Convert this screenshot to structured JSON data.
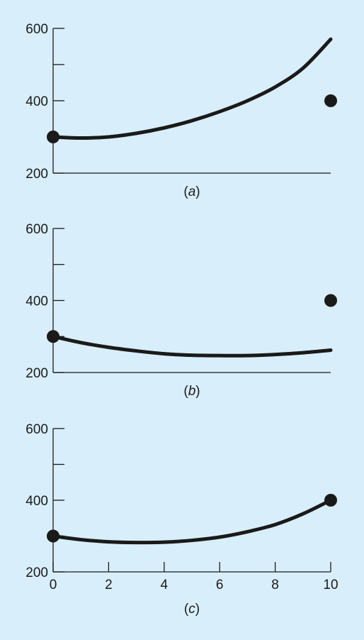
{
  "colors": {
    "background": "#d9eefb",
    "ink": "#1a1a1a"
  },
  "chart_data": [
    {
      "type": "line",
      "panel_label": "(a)",
      "panel_letter": "a",
      "xlim": [
        0,
        10
      ],
      "ylim": [
        200,
        600
      ],
      "y_ticks": [
        200,
        300,
        400,
        500,
        600
      ],
      "y_tick_labels": [
        "200",
        "",
        "400",
        "",
        "600"
      ],
      "x_ticks": [],
      "x_tick_labels": [],
      "series": [
        {
          "kind": "curve",
          "x": [
            0,
            1,
            2,
            3,
            4,
            5,
            6,
            7,
            8,
            9,
            10
          ],
          "y": [
            300,
            297,
            300,
            310,
            325,
            345,
            370,
            400,
            438,
            490,
            570
          ]
        },
        {
          "kind": "points",
          "x": [
            0,
            10
          ],
          "y": [
            300,
            400
          ]
        }
      ]
    },
    {
      "type": "line",
      "panel_label": "(b)",
      "panel_letter": "b",
      "xlim": [
        0,
        10
      ],
      "ylim": [
        200,
        600
      ],
      "y_ticks": [
        200,
        300,
        400,
        500,
        600
      ],
      "y_tick_labels": [
        "200",
        "",
        "400",
        "",
        "600"
      ],
      "x_ticks": [],
      "x_tick_labels": [],
      "series": [
        {
          "kind": "curve",
          "x": [
            0,
            1,
            2,
            3,
            4,
            5,
            6,
            7,
            8,
            9,
            10
          ],
          "y": [
            300,
            283,
            270,
            260,
            252,
            248,
            247,
            247,
            250,
            255,
            262
          ]
        },
        {
          "kind": "points",
          "x": [
            0,
            10
          ],
          "y": [
            300,
            400
          ]
        }
      ]
    },
    {
      "type": "line",
      "panel_label": "(c)",
      "panel_letter": "c",
      "xlim": [
        0,
        10
      ],
      "ylim": [
        200,
        600
      ],
      "y_ticks": [
        200,
        300,
        400,
        500,
        600
      ],
      "y_tick_labels": [
        "200",
        "",
        "400",
        "",
        "600"
      ],
      "x_ticks": [
        0,
        2,
        4,
        6,
        8,
        10
      ],
      "x_tick_labels": [
        "0",
        "2",
        "4",
        "6",
        "8",
        "10"
      ],
      "series": [
        {
          "kind": "curve",
          "x": [
            0,
            1,
            2,
            3,
            4,
            5,
            6,
            7,
            8,
            9,
            10
          ],
          "y": [
            300,
            290,
            284,
            282,
            283,
            288,
            297,
            312,
            332,
            362,
            400
          ]
        },
        {
          "kind": "points",
          "x": [
            0,
            10
          ],
          "y": [
            300,
            400
          ]
        }
      ]
    }
  ]
}
